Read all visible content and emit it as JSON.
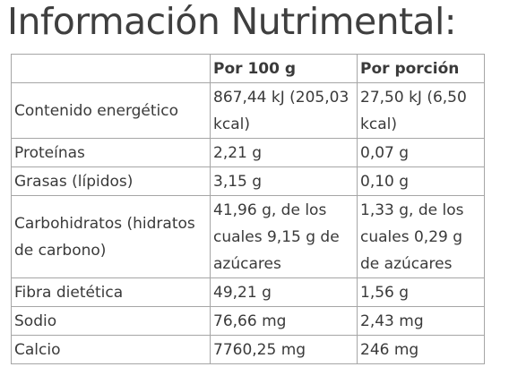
{
  "title": "Información Nutrimental:",
  "table": {
    "headers": [
      "",
      "Por 100 g",
      "Por porción"
    ],
    "rows": [
      [
        "Contenido energético",
        "867,44 kJ (205,03 kcal)",
        "27,50 kJ (6,50 kcal)"
      ],
      [
        "Proteínas",
        "2,21 g",
        "0,07 g"
      ],
      [
        "Grasas (lípidos)",
        "3,15 g",
        "0,10 g"
      ],
      [
        "Carbohidratos (hidratos de carbono)",
        "41,96 g, de los cuales 9,15 g de azúcares",
        "1,33 g, de los cuales  0,29 g de azúcares"
      ],
      [
        "Fibra dietética",
        "49,21 g",
        "1,56 g"
      ],
      [
        "Sodio",
        "76,66 mg",
        "2,43 mg"
      ],
      [
        "Calcio",
        "7760,25 mg",
        "246 mg"
      ]
    ]
  }
}
